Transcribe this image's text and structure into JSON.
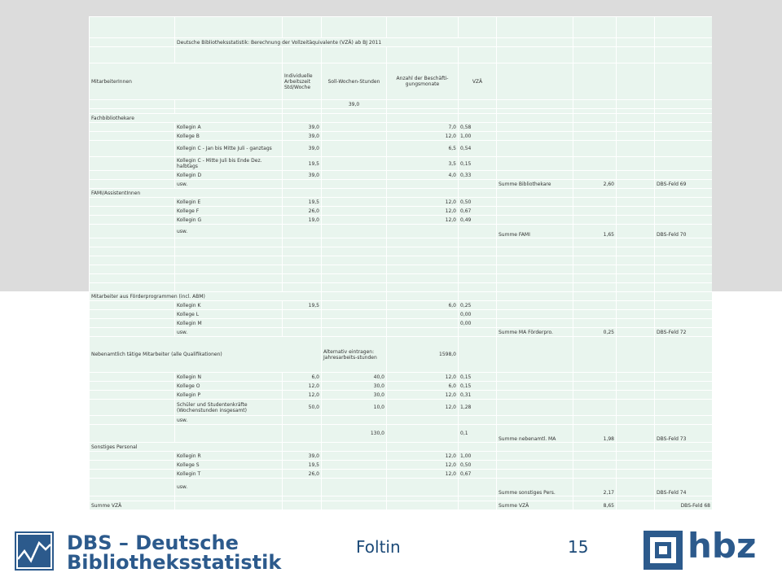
{
  "title": "Deutsche Bibliotheksstatistik: Berechnung der Vollzeitäquivalente (VZÄ) ab BJ 2011",
  "headers": {
    "staff": "MitarbeiterInnen",
    "individual": "Individuelle Arbeitszeit Std/Woche",
    "target": "Soll-Wochen-Stunden",
    "months": "Anzahl der Beschäfti-gungsmonate",
    "vza": "VZÄ"
  },
  "soll_value": "39,0",
  "sections": [
    {
      "label": "Fachbibliothekare",
      "rows": [
        {
          "name": "Kollegin A",
          "hours": "39,0",
          "months": "7,0",
          "vza": "0,58"
        },
        {
          "name": "Kollege B",
          "hours": "39,0",
          "months": "12,0",
          "vza": "1,00"
        },
        {
          "name": "Kollegin C - Jan bis Mitte Juli - ganztags",
          "hours": "39,0",
          "months": "6,5",
          "vza": "0,54"
        },
        {
          "name": "Kollegin C - Mitte Juli bis Ende Dez. halbtags",
          "hours": "19,5",
          "months": "3,5",
          "vza": "0,15"
        },
        {
          "name": "Kollegin D",
          "hours": "39,0",
          "months": "4,0",
          "vza": "0,33"
        }
      ],
      "usw": "usw.",
      "sum_label": "Summe Bibliothekare",
      "sum_value": "2,60",
      "field": "DBS-Feld 69"
    },
    {
      "label": "FAMI/AssistentInnen",
      "rows": [
        {
          "name": "Kollegin E",
          "hours": "19,5",
          "months": "12,0",
          "vza": "0,50"
        },
        {
          "name": "Kollege F",
          "hours": "26,0",
          "months": "12,0",
          "vza": "0,67"
        },
        {
          "name": "Kollegin G",
          "hours": "19,0",
          "months": "12,0",
          "vza": "0,49"
        }
      ],
      "usw": "usw.",
      "sum_label": "Summe FAMI",
      "sum_value": "1,65",
      "field": "DBS-Feld 70"
    },
    {
      "label": "Mitarbeiter aus Förderprogrammen (incl. ABM)",
      "rows": [
        {
          "name": "Kollegin K",
          "hours": "19,5",
          "months": "6,0",
          "vza": "0,25"
        },
        {
          "name": "Kollege L",
          "hours": "",
          "months": "",
          "vza": "0,00"
        },
        {
          "name": "Kollegin M",
          "hours": "",
          "months": "",
          "vza": "0,00"
        }
      ],
      "usw": "usw.",
      "sum_label": "Summe MA Förderpro.",
      "sum_value": "0,25",
      "field": "DBS-Feld 72"
    }
  ],
  "side": {
    "label": "Nebenamtlich tätige Mitarbeiter (alle Qualifikationen)",
    "alt_label": "Alternativ eintragen: Jahresarbeits-stunden",
    "alt_value": "1598,0",
    "rows": [
      {
        "name": "Kollegin N",
        "hours": "6,0",
        "alt": "40,0",
        "months": "12,0",
        "vza": "0,15"
      },
      {
        "name": "Kollege O",
        "hours": "12,0",
        "alt": "30,0",
        "months": "6,0",
        "vza": "0,15"
      },
      {
        "name": "Kollegin P",
        "hours": "12,0",
        "alt": "30,0",
        "months": "12,0",
        "vza": "0,31"
      },
      {
        "name": "Schüler und Studentenkräfte (Wochenstunden insgesamt)",
        "hours": "50,0",
        "alt": "10,0",
        "months": "12,0",
        "vza": "1,28"
      }
    ],
    "usw": "usw.",
    "total_alt": "130,0",
    "total_vza": "0,1",
    "sum_label": "Summe nebenamtl. MA",
    "sum_value": "1,98",
    "field": "DBS-Feld 73"
  },
  "other": {
    "label": "Sonstiges Personal",
    "rows": [
      {
        "name": "Kollegin R",
        "hours": "39,0",
        "months": "12,0",
        "vza": "1,00"
      },
      {
        "name": "Kollege S",
        "hours": "19,5",
        "months": "12,0",
        "vza": "0,50"
      },
      {
        "name": "Kollegin T",
        "hours": "26,0",
        "months": "12,0",
        "vza": "0,67"
      }
    ],
    "usw": "usw.",
    "sum_label": "Summe sonstiges Pers.",
    "sum_value": "2,17",
    "field": "DBS-Feld 74"
  },
  "total": {
    "label": "Summe VZÄ",
    "sum_label": "Summe VZÄ",
    "sum_value": "8,65",
    "field": "DBS-Feld 68"
  },
  "footer": {
    "author": "Foltin",
    "page": "15",
    "logo_left_line1": "DBS – Deutsche",
    "logo_left_line2": "Bibliotheksstatistik",
    "logo_right": "hbz"
  }
}
